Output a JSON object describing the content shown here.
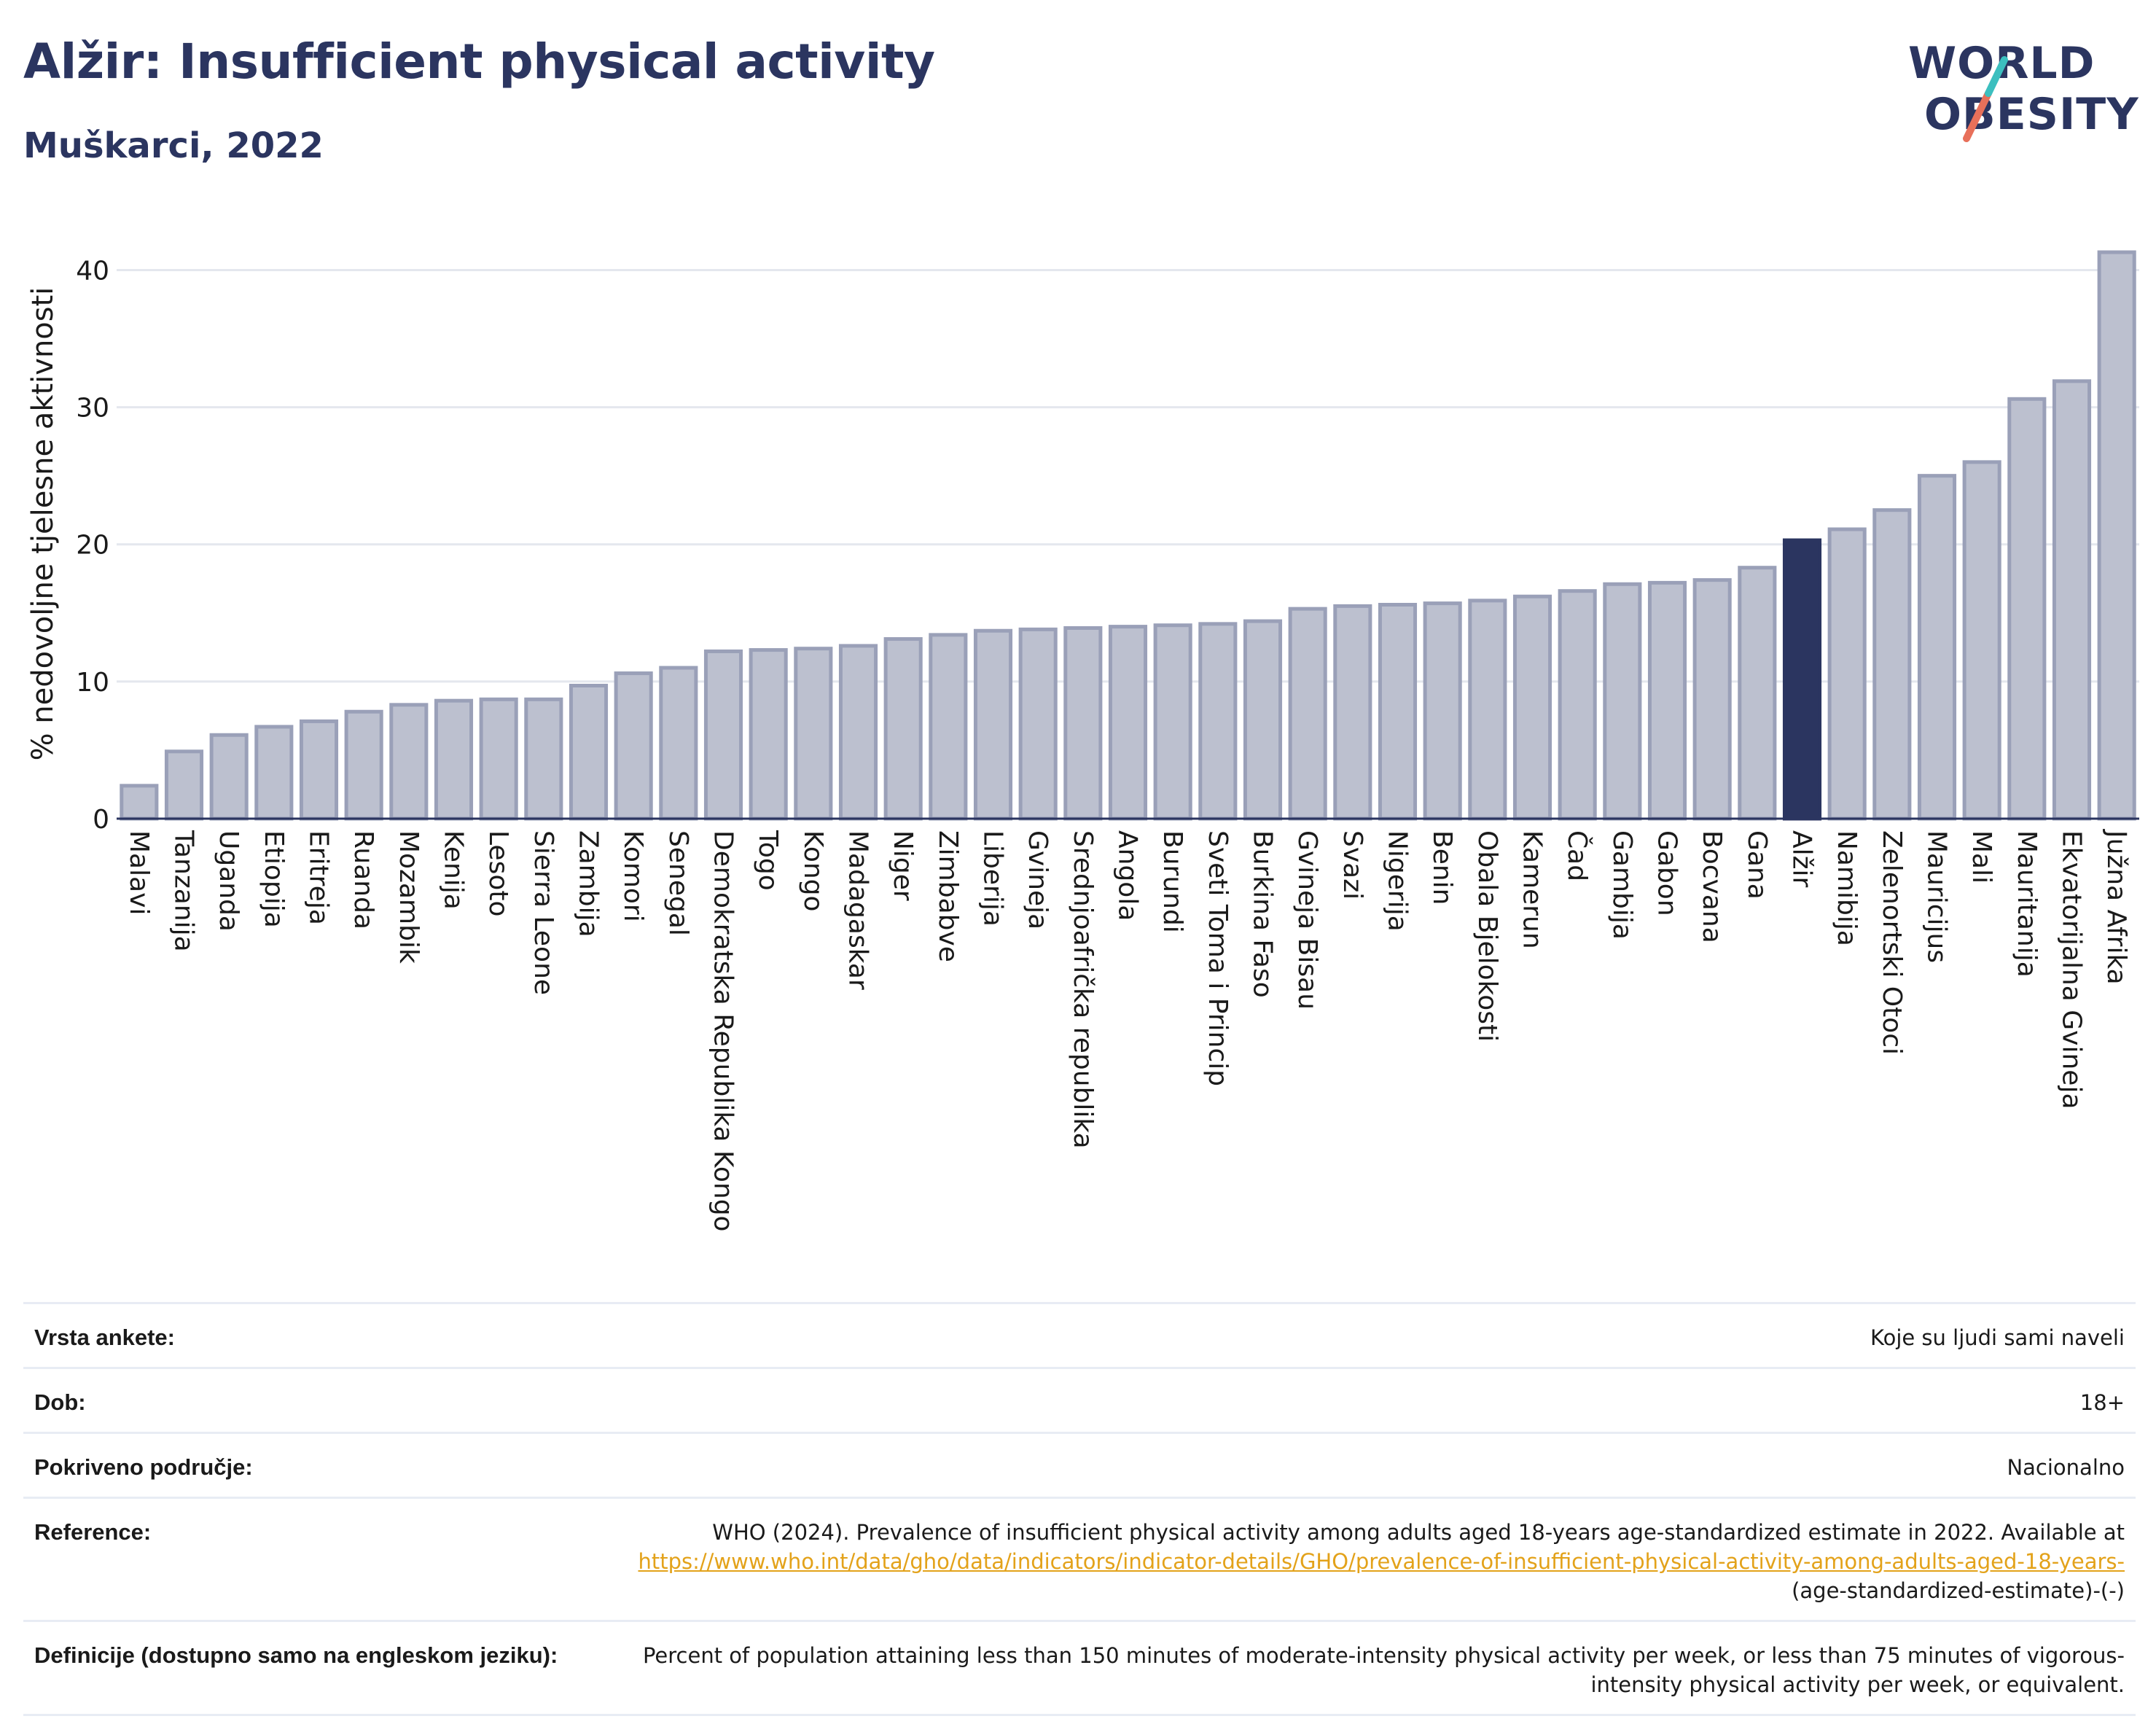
{
  "header": {
    "title": "Alžir: Insufficient physical activity",
    "subtitle": "Muškarci, 2022"
  },
  "logo": {
    "line1": "WORLD",
    "line2": "OBESITY",
    "text_color": "#2b3560",
    "slash_teal": "#3cbfbf",
    "slash_coral": "#e8705a"
  },
  "colors": {
    "bar": "#bcc0cf",
    "bar_stroke": "#9aa0b8",
    "highlight": "#2b3560",
    "grid": "#e4e7ee",
    "axis": "#2b3560"
  },
  "chart_data": {
    "type": "bar",
    "ylabel": "% nedovoljne tjelesne aktivnosti",
    "ylim": [
      0,
      43
    ],
    "yticks": [
      0,
      10,
      20,
      30,
      40
    ],
    "grid": true,
    "highlight": "Alžir",
    "categories": [
      "Malavi",
      "Tanzanija",
      "Uganda",
      "Etiopija",
      "Eritreja",
      "Ruanda",
      "Mozambik",
      "Kenija",
      "Lesoto",
      "Sierra Leone",
      "Zambija",
      "Komori",
      "Senegal",
      "Demokratska Republika Kongo",
      "Togo",
      "Kongo",
      "Madagaskar",
      "Niger",
      "Zimbabve",
      "Liberija",
      "Gvineja",
      "Srednjoafrička republika",
      "Angola",
      "Burundi",
      "Sveti Toma i Princip",
      "Burkina Faso",
      "Gvineja Bisau",
      "Svazi",
      "Nigerija",
      "Benin",
      "Obala Bjelokosti",
      "Kamerun",
      "Čad",
      "Gambija",
      "Gabon",
      "Bocvana",
      "Gana",
      "Alžir",
      "Namibija",
      "Zelenortski Otoci",
      "Mauricijus",
      "Mali",
      "Mauritanija",
      "Ekvatorijalna Gvineja",
      "Južna Afrika"
    ],
    "values": [
      2.4,
      4.9,
      6.1,
      6.7,
      7.1,
      7.8,
      8.3,
      8.6,
      8.7,
      8.7,
      9.7,
      10.6,
      11.0,
      12.2,
      12.3,
      12.4,
      12.6,
      13.1,
      13.4,
      13.7,
      13.8,
      13.9,
      14.0,
      14.1,
      14.2,
      14.4,
      15.3,
      15.5,
      15.6,
      15.7,
      15.9,
      16.2,
      16.6,
      17.1,
      17.2,
      17.4,
      18.3,
      20.3,
      21.1,
      22.5,
      25.0,
      26.0,
      30.6,
      31.9,
      41.3
    ]
  },
  "footer": {
    "rows": [
      {
        "label": "Vrsta ankete:",
        "value": "Koje su ljudi sami naveli"
      },
      {
        "label": "Dob:",
        "value": "18+"
      },
      {
        "label": "Pokriveno područje:",
        "value": "Nacionalno"
      }
    ],
    "reference": {
      "label": "Reference:",
      "text": "WHO (2024). Prevalence of insufficient physical activity among adults aged 18-years age-standardized estimate in 2022. Available at",
      "link": "https://www.who.int/data/gho/data/indicators/indicator-details/GHO/prevalence-of-insufficient-physical-activity-among-adults-aged-18-years-",
      "suffix": "(age-standardized-estimate)-(-)"
    },
    "definition": {
      "label": "Definicije (dostupno samo na engleskom jeziku):",
      "text": "Percent of population attaining less than 150 minutes of moderate-intensity physical activity per week, or less than 75 minutes of vigorous-intensity physical activity per week, or equivalent."
    }
  }
}
